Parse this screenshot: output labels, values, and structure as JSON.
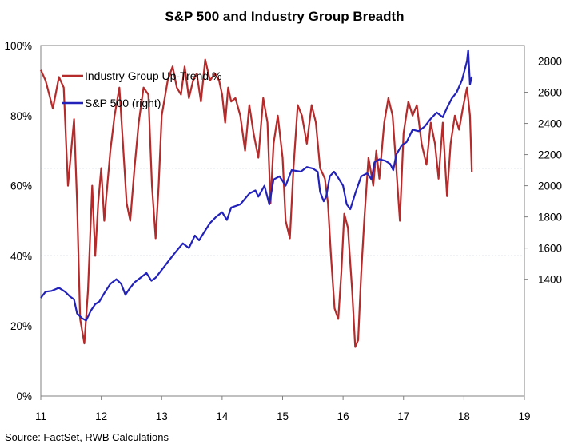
{
  "chart_data": {
    "type": "line",
    "title": "S&P 500 and Industry Group Breadth",
    "source": "Source: FactSet, RWB Calculations",
    "x_ticks": [
      "11",
      "12",
      "13",
      "14",
      "15",
      "16",
      "17",
      "18",
      "19"
    ],
    "x_range": [
      2011,
      2019
    ],
    "left_axis": {
      "ticks": [
        "0%",
        "20%",
        "40%",
        "60%",
        "80%",
        "100%"
      ],
      "range": [
        0,
        100
      ]
    },
    "right_axis": {
      "ticks": [
        "1400",
        "1600",
        "1800",
        "2000",
        "2200",
        "2400",
        "2600",
        "2800"
      ],
      "range": [
        650,
        2900
      ]
    },
    "reference_lines_pct": [
      65,
      40
    ],
    "legend": [
      {
        "label": "Industry Group Up-Trend %",
        "color": "#b52a2a"
      },
      {
        "label": "S&P 500 (right)",
        "color": "#2222bb"
      }
    ],
    "series": [
      {
        "name": "Industry Group Up-Trend %",
        "axis": "left",
        "color": "#b52a2a",
        "points": [
          [
            2011.0,
            93
          ],
          [
            2011.08,
            90
          ],
          [
            2011.2,
            82
          ],
          [
            2011.3,
            91
          ],
          [
            2011.38,
            88
          ],
          [
            2011.45,
            60
          ],
          [
            2011.55,
            79
          ],
          [
            2011.6,
            55
          ],
          [
            2011.65,
            22
          ],
          [
            2011.72,
            15
          ],
          [
            2011.78,
            30
          ],
          [
            2011.85,
            60
          ],
          [
            2011.9,
            40
          ],
          [
            2011.95,
            55
          ],
          [
            2012.0,
            65
          ],
          [
            2012.05,
            50
          ],
          [
            2012.15,
            70
          ],
          [
            2012.22,
            80
          ],
          [
            2012.3,
            88
          ],
          [
            2012.36,
            72
          ],
          [
            2012.42,
            55
          ],
          [
            2012.48,
            50
          ],
          [
            2012.55,
            65
          ],
          [
            2012.62,
            78
          ],
          [
            2012.7,
            88
          ],
          [
            2012.78,
            86
          ],
          [
            2012.84,
            60
          ],
          [
            2012.9,
            45
          ],
          [
            2012.95,
            60
          ],
          [
            2013.0,
            80
          ],
          [
            2013.1,
            90
          ],
          [
            2013.18,
            94
          ],
          [
            2013.25,
            88
          ],
          [
            2013.32,
            86
          ],
          [
            2013.38,
            94
          ],
          [
            2013.45,
            85
          ],
          [
            2013.52,
            90
          ],
          [
            2013.58,
            92
          ],
          [
            2013.65,
            84
          ],
          [
            2013.72,
            96
          ],
          [
            2013.8,
            90
          ],
          [
            2013.88,
            92
          ],
          [
            2013.95,
            90
          ],
          [
            2014.0,
            86
          ],
          [
            2014.05,
            78
          ],
          [
            2014.1,
            88
          ],
          [
            2014.15,
            84
          ],
          [
            2014.22,
            85
          ],
          [
            2014.3,
            80
          ],
          [
            2014.38,
            70
          ],
          [
            2014.45,
            83
          ],
          [
            2014.52,
            75
          ],
          [
            2014.6,
            68
          ],
          [
            2014.68,
            85
          ],
          [
            2014.75,
            78
          ],
          [
            2014.8,
            55
          ],
          [
            2014.85,
            72
          ],
          [
            2014.92,
            80
          ],
          [
            2015.0,
            68
          ],
          [
            2015.05,
            50
          ],
          [
            2015.12,
            45
          ],
          [
            2015.18,
            65
          ],
          [
            2015.25,
            83
          ],
          [
            2015.32,
            80
          ],
          [
            2015.4,
            72
          ],
          [
            2015.48,
            83
          ],
          [
            2015.55,
            78
          ],
          [
            2015.62,
            65
          ],
          [
            2015.7,
            62
          ],
          [
            2015.75,
            55
          ],
          [
            2015.8,
            40
          ],
          [
            2015.86,
            25
          ],
          [
            2015.92,
            22
          ],
          [
            2015.97,
            35
          ],
          [
            2016.02,
            52
          ],
          [
            2016.08,
            48
          ],
          [
            2016.15,
            30
          ],
          [
            2016.2,
            14
          ],
          [
            2016.25,
            16
          ],
          [
            2016.3,
            35
          ],
          [
            2016.35,
            50
          ],
          [
            2016.42,
            68
          ],
          [
            2016.5,
            60
          ],
          [
            2016.55,
            70
          ],
          [
            2016.6,
            62
          ],
          [
            2016.68,
            78
          ],
          [
            2016.75,
            85
          ],
          [
            2016.82,
            80
          ],
          [
            2016.88,
            65
          ],
          [
            2016.94,
            50
          ],
          [
            2017.0,
            75
          ],
          [
            2017.08,
            84
          ],
          [
            2017.15,
            80
          ],
          [
            2017.22,
            83
          ],
          [
            2017.3,
            72
          ],
          [
            2017.38,
            66
          ],
          [
            2017.45,
            78
          ],
          [
            2017.52,
            72
          ],
          [
            2017.58,
            62
          ],
          [
            2017.65,
            78
          ],
          [
            2017.72,
            57
          ],
          [
            2017.78,
            72
          ],
          [
            2017.85,
            80
          ],
          [
            2017.92,
            76
          ],
          [
            2017.98,
            82
          ],
          [
            2018.05,
            88
          ],
          [
            2018.1,
            80
          ],
          [
            2018.13,
            64
          ]
        ]
      },
      {
        "name": "S&P 500 (right)",
        "axis": "right",
        "color": "#2222bb",
        "points": [
          [
            2011.0,
            1280
          ],
          [
            2011.08,
            1320
          ],
          [
            2011.18,
            1325
          ],
          [
            2011.3,
            1345
          ],
          [
            2011.4,
            1320
          ],
          [
            2011.48,
            1290
          ],
          [
            2011.55,
            1270
          ],
          [
            2011.6,
            1180
          ],
          [
            2011.68,
            1150
          ],
          [
            2011.75,
            1135
          ],
          [
            2011.83,
            1200
          ],
          [
            2011.9,
            1240
          ],
          [
            2011.97,
            1258
          ],
          [
            2012.05,
            1310
          ],
          [
            2012.15,
            1370
          ],
          [
            2012.25,
            1400
          ],
          [
            2012.33,
            1370
          ],
          [
            2012.4,
            1300
          ],
          [
            2012.45,
            1330
          ],
          [
            2012.55,
            1380
          ],
          [
            2012.65,
            1410
          ],
          [
            2012.75,
            1440
          ],
          [
            2012.83,
            1390
          ],
          [
            2012.9,
            1410
          ],
          [
            2013.0,
            1460
          ],
          [
            2013.1,
            1510
          ],
          [
            2013.2,
            1560
          ],
          [
            2013.35,
            1630
          ],
          [
            2013.45,
            1600
          ],
          [
            2013.55,
            1680
          ],
          [
            2013.62,
            1650
          ],
          [
            2013.7,
            1700
          ],
          [
            2013.8,
            1760
          ],
          [
            2013.9,
            1800
          ],
          [
            2014.0,
            1830
          ],
          [
            2014.08,
            1780
          ],
          [
            2014.15,
            1860
          ],
          [
            2014.3,
            1880
          ],
          [
            2014.45,
            1950
          ],
          [
            2014.55,
            1970
          ],
          [
            2014.6,
            1930
          ],
          [
            2014.7,
            2000
          ],
          [
            2014.78,
            1880
          ],
          [
            2014.85,
            2040
          ],
          [
            2014.95,
            2060
          ],
          [
            2015.0,
            2030
          ],
          [
            2015.05,
            2000
          ],
          [
            2015.15,
            2100
          ],
          [
            2015.3,
            2090
          ],
          [
            2015.4,
            2120
          ],
          [
            2015.5,
            2110
          ],
          [
            2015.58,
            2090
          ],
          [
            2015.62,
            1960
          ],
          [
            2015.68,
            1900
          ],
          [
            2015.72,
            1930
          ],
          [
            2015.78,
            2060
          ],
          [
            2015.85,
            2090
          ],
          [
            2015.92,
            2050
          ],
          [
            2016.0,
            2000
          ],
          [
            2016.06,
            1880
          ],
          [
            2016.12,
            1850
          ],
          [
            2016.2,
            1950
          ],
          [
            2016.3,
            2060
          ],
          [
            2016.4,
            2080
          ],
          [
            2016.47,
            2040
          ],
          [
            2016.52,
            2150
          ],
          [
            2016.6,
            2170
          ],
          [
            2016.7,
            2160
          ],
          [
            2016.78,
            2140
          ],
          [
            2016.83,
            2100
          ],
          [
            2016.88,
            2200
          ],
          [
            2016.97,
            2260
          ],
          [
            2017.05,
            2280
          ],
          [
            2017.15,
            2360
          ],
          [
            2017.25,
            2350
          ],
          [
            2017.35,
            2380
          ],
          [
            2017.45,
            2430
          ],
          [
            2017.55,
            2470
          ],
          [
            2017.65,
            2440
          ],
          [
            2017.72,
            2500
          ],
          [
            2017.8,
            2560
          ],
          [
            2017.88,
            2600
          ],
          [
            2017.97,
            2680
          ],
          [
            2018.05,
            2800
          ],
          [
            2018.07,
            2870
          ],
          [
            2018.1,
            2650
          ],
          [
            2018.13,
            2700
          ]
        ]
      }
    ]
  }
}
